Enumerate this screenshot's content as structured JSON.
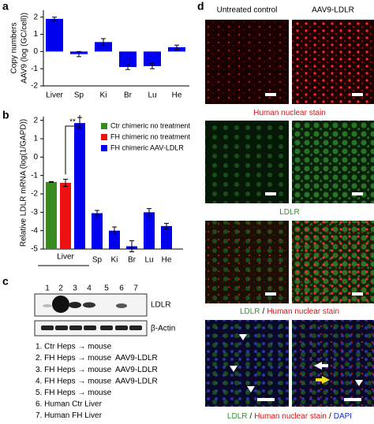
{
  "panel_labels": [
    "a",
    "b",
    "c",
    "d"
  ],
  "chart_data": [
    {
      "type": "bar",
      "y_label": [
        "Copy numbers",
        "AAV9 (log (GC/cell))"
      ],
      "categories": [
        "Liver",
        "Sp",
        "Ki",
        "Br",
        "Lu",
        "He"
      ],
      "values": [
        1.9,
        -0.15,
        0.55,
        -0.9,
        -0.85,
        0.25
      ],
      "errors": [
        0.1,
        0.15,
        0.2,
        0.15,
        0.15,
        0.12
      ],
      "color": "#0000ee",
      "ylim": [
        -2,
        2.4
      ],
      "yticks": [
        -2,
        -1,
        0,
        1,
        2
      ],
      "bars_from_axis_bottom": false
    },
    {
      "type": "bar",
      "y_label": "Relative LDLR mRNA (log(1/GAPD))",
      "categories": [
        "Liver",
        "Sp",
        "Ki",
        "Br",
        "Lu",
        "He"
      ],
      "series": [
        {
          "name": "Ctr chimeric no treatment",
          "color": "#3a8a22",
          "values": [
            -1.35,
            null,
            null,
            null,
            null,
            null
          ],
          "errors": [
            0.02,
            null,
            null,
            null,
            null,
            null
          ]
        },
        {
          "name": "FH chimeric no treatment",
          "color": "#ee1111",
          "values": [
            -1.4,
            null,
            null,
            null,
            null,
            null
          ],
          "errors": [
            0.2,
            null,
            null,
            null,
            null,
            null
          ]
        },
        {
          "name": "FH chimeric AAV-LDLR",
          "color": "#0000ee",
          "values": [
            1.85,
            -3.05,
            -4.0,
            -4.85,
            -3.0,
            -3.75
          ],
          "errors": [
            0.3,
            0.15,
            0.2,
            0.3,
            0.2,
            0.15
          ]
        }
      ],
      "significance": "**",
      "ylim": [
        -5,
        2.2
      ],
      "yticks": [
        -5,
        -4,
        -3,
        -2,
        -1,
        0,
        1,
        2
      ],
      "bars_from_axis_bottom": true,
      "legend": "top-right"
    }
  ],
  "blot": {
    "lanes": [
      {
        "label": "1",
        "color": "#000000"
      },
      {
        "label": "2",
        "color": "#1a3ad0"
      },
      {
        "label": "3",
        "color": "#1a3ad0"
      },
      {
        "label": "4",
        "color": "#1a3ad0"
      },
      {
        "label": "5",
        "color": "#000000"
      },
      {
        "label": "6",
        "color": "#000000"
      },
      {
        "label": "7",
        "color": "#000000"
      }
    ],
    "row_labels": [
      "LDLR",
      "β-Actin"
    ],
    "items": [
      {
        "text": "1. Ctr Heps → mouse",
        "color": "#000000"
      },
      {
        "text": "2. FH Heps → mouse",
        "vector": "AAV9-LDLR",
        "color": "#1a3ad0"
      },
      {
        "text": "3. FH Heps → mouse",
        "vector": "AAV9-LDLR",
        "color": "#1a3ad0"
      },
      {
        "text": "4. FH Heps → mouse",
        "vector": "AAV9-LDLR",
        "color": "#1a3ad0"
      },
      {
        "text": "5. FH Heps → mouse",
        "color": "#000000"
      },
      {
        "text": "6. Human Ctr Liver",
        "color": "#000000"
      },
      {
        "text": "7. Human FH Liver",
        "color": "#000000"
      }
    ]
  },
  "micrographs": {
    "column_titles": [
      "Untreated control",
      "AAV9-LDLR"
    ],
    "row_captions": [
      [
        {
          "text": "Human nuclear stain",
          "color": "#e01010"
        }
      ],
      [
        {
          "text": "LDLR",
          "color": "#2a9a2a"
        }
      ],
      [
        {
          "text": "LDLR",
          "color": "#2a9a2a"
        },
        {
          "text": "/",
          "color": "#000000"
        },
        {
          "text": "Human nuclear stain",
          "color": "#e01010"
        }
      ],
      [
        {
          "text": "LDLR",
          "color": "#2a9a2a"
        },
        {
          "text": "/",
          "color": "#000000"
        },
        {
          "text": "Human nuclear stain",
          "color": "#e01010"
        },
        {
          "text": "/",
          "color": "#000000"
        },
        {
          "text": "DAPI",
          "color": "#1a2ad0"
        }
      ]
    ]
  }
}
